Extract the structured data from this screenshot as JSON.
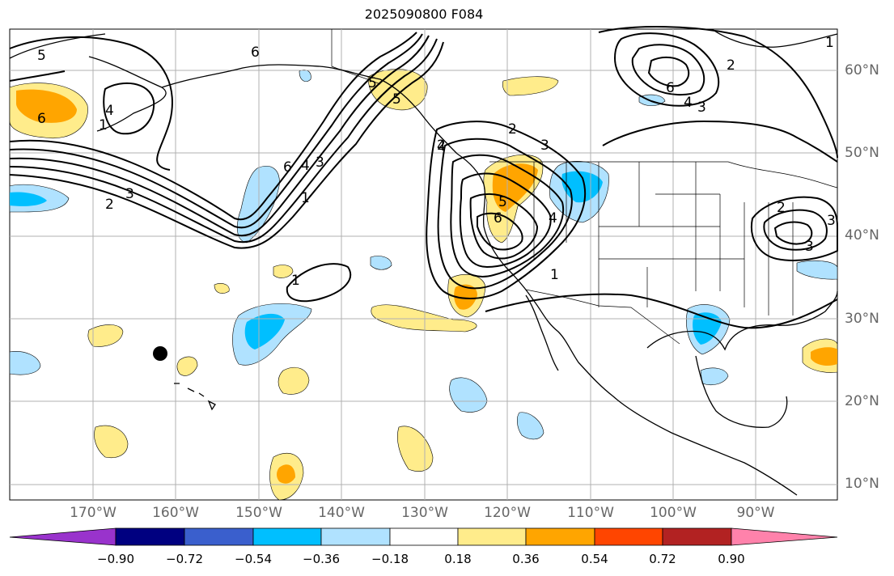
{
  "title": "2025090800 F084",
  "lat_labels": [
    "60°N",
    "50°N",
    "40°N",
    "30°N",
    "20°N",
    "10°N"
  ],
  "lon_labels": [
    "170°W",
    "160°W",
    "150°W",
    "140°W",
    "130°W",
    "120°W",
    "110°W",
    "100°W",
    "90°W"
  ],
  "colorbar": {
    "ticks": [
      "−0.90",
      "−0.72",
      "−0.54",
      "−0.36",
      "−0.18",
      "0.18",
      "0.36",
      "0.54",
      "0.72",
      "0.90"
    ],
    "colors": [
      "#9933cc",
      "#000080",
      "#3a5fcd",
      "#00bfff",
      "#b0e2ff",
      "#ffffff",
      "#ffec8b",
      "#ffa500",
      "#ff4500",
      "#b22222",
      "#ff82ab"
    ]
  },
  "contour_labels": [
    "5",
    "6",
    "4",
    "1",
    "2",
    "3",
    "6",
    "4",
    "3",
    "1",
    "5",
    "2",
    "6",
    "5",
    "4",
    "3",
    "2",
    "1",
    "6",
    "4",
    "3",
    "2",
    "1",
    "6",
    "5",
    "4",
    "3",
    "2",
    "1",
    "3"
  ],
  "colors": {
    "land_line": "#000000",
    "grid": "#b0b0b0",
    "contour": "#000000"
  }
}
